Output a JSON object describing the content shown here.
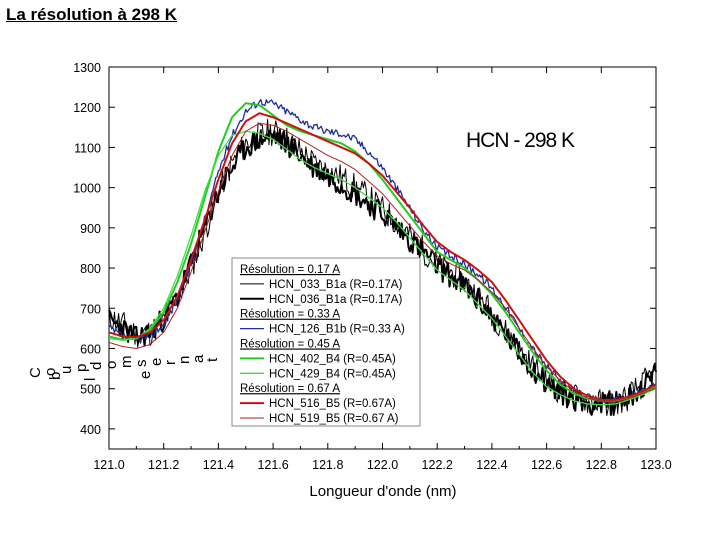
{
  "slide": {
    "title": "La résolution à 298 K"
  },
  "chart_data": {
    "type": "line",
    "title": "",
    "annotation": "HCN - 298 K",
    "xlabel": "Longueur d'onde (nm)",
    "ylabel_fragments": [
      "C",
      "o",
      "u",
      "p",
      "d",
      "o",
      "m",
      "s",
      "e",
      "r",
      "n",
      "a",
      "t",
      "b",
      "l",
      "e"
    ],
    "xlim": [
      121.0,
      123.0
    ],
    "ylim": [
      350,
      1300
    ],
    "xticks": [
      "121.0",
      "121.2",
      "121.4",
      "121.6",
      "121.8",
      "122.0",
      "122.2",
      "122.4",
      "122.6",
      "122.8",
      "123.0"
    ],
    "yticks": [
      "400",
      "500",
      "600",
      "700",
      "800",
      "900",
      "1000",
      "1100",
      "1200",
      "1300"
    ],
    "legend_position": "center-left",
    "legend": [
      {
        "kind": "header",
        "label": "Résolution = 0.17 A"
      },
      {
        "kind": "entry",
        "label": "HCN_033_B1a (R=0.17A)",
        "color": "#000000",
        "width": 1
      },
      {
        "kind": "entry",
        "label": "HCN_036_B1a (R=0.17A)",
        "color": "#000000",
        "width": 2
      },
      {
        "kind": "header",
        "label": "Résolution = 0.33 A"
      },
      {
        "kind": "entry",
        "label": "HCN_126_B1b (R=0.33 A)",
        "color": "#1f2f9a",
        "width": 1.3
      },
      {
        "kind": "header",
        "label": "Résolution = 0.45 A"
      },
      {
        "kind": "entry",
        "label": "HCN_402_B4 (R=0.45A)",
        "color": "#22cc22",
        "width": 2
      },
      {
        "kind": "entry",
        "label": "HCN_429_B4 (R=0.45A)",
        "color": "#44dd44",
        "width": 1.3
      },
      {
        "kind": "header",
        "label": "Résolution = 0.67 A"
      },
      {
        "kind": "entry",
        "label": "HCN_516_B5 (R=0.67A)",
        "color": "#cc1111",
        "width": 2
      },
      {
        "kind": "entry",
        "label": "HCN_519_B5 (R=0.67 A)",
        "color": "#aa2222",
        "width": 1
      }
    ],
    "series": [
      {
        "name": "HCN_033_B1a (R=0.17A)",
        "color": "#000000",
        "width": 1,
        "noise": 35,
        "seed": 11,
        "x": [
          121.0,
          121.05,
          121.1,
          121.15,
          121.2,
          121.25,
          121.3,
          121.35,
          121.4,
          121.45,
          121.5,
          121.55,
          121.6,
          121.65,
          121.7,
          121.75,
          121.8,
          121.85,
          121.9,
          121.95,
          122.0,
          122.05,
          122.1,
          122.15,
          122.2,
          122.25,
          122.3,
          122.35,
          122.4,
          122.45,
          122.5,
          122.55,
          122.6,
          122.65,
          122.7,
          122.75,
          122.8,
          122.85,
          122.9,
          122.95,
          123.0
        ],
        "y": [
          680,
          660,
          635,
          640,
          665,
          720,
          800,
          890,
          990,
          1060,
          1110,
          1130,
          1140,
          1120,
          1090,
          1060,
          1040,
          1025,
          1000,
          975,
          945,
          915,
          880,
          845,
          810,
          790,
          765,
          730,
          690,
          640,
          595,
          555,
          520,
          495,
          480,
          470,
          465,
          465,
          480,
          510,
          545
        ]
      },
      {
        "name": "HCN_036_B1a (R=0.17A)",
        "color": "#000000",
        "width": 2,
        "noise": 30,
        "seed": 23,
        "x": [
          121.0,
          121.05,
          121.1,
          121.15,
          121.2,
          121.25,
          121.3,
          121.35,
          121.4,
          121.45,
          121.5,
          121.55,
          121.6,
          121.65,
          121.7,
          121.75,
          121.8,
          121.85,
          121.9,
          121.95,
          122.0,
          122.05,
          122.1,
          122.15,
          122.2,
          122.25,
          122.3,
          122.35,
          122.4,
          122.45,
          122.5,
          122.55,
          122.6,
          122.65,
          122.7,
          122.75,
          122.8,
          122.85,
          122.9,
          122.95,
          123.0
        ],
        "y": [
          670,
          650,
          625,
          640,
          675,
          730,
          810,
          900,
          990,
          1050,
          1100,
          1120,
          1130,
          1110,
          1080,
          1050,
          1030,
          1010,
          985,
          960,
          935,
          905,
          870,
          840,
          805,
          780,
          755,
          720,
          680,
          635,
          590,
          550,
          515,
          490,
          475,
          465,
          462,
          465,
          480,
          505,
          535
        ]
      },
      {
        "name": "HCN_126_B1b (R=0.33 A)",
        "color": "#1f2f9a",
        "width": 1.3,
        "noise": 10,
        "seed": 37,
        "x": [
          121.0,
          121.05,
          121.1,
          121.15,
          121.2,
          121.25,
          121.3,
          121.35,
          121.4,
          121.45,
          121.5,
          121.55,
          121.6,
          121.65,
          121.7,
          121.75,
          121.8,
          121.85,
          121.9,
          121.95,
          122.0,
          122.05,
          122.1,
          122.15,
          122.2,
          122.25,
          122.3,
          122.35,
          122.4,
          122.45,
          122.5,
          122.55,
          122.6,
          122.65,
          122.7,
          122.75,
          122.8,
          122.85,
          122.9,
          122.95,
          123.0
        ],
        "y": [
          650,
          630,
          620,
          630,
          660,
          720,
          810,
          920,
          1040,
          1130,
          1190,
          1215,
          1210,
          1190,
          1170,
          1150,
          1140,
          1135,
          1120,
          1090,
          1050,
          1000,
          950,
          895,
          850,
          830,
          810,
          785,
          750,
          705,
          650,
          600,
          555,
          520,
          495,
          478,
          470,
          470,
          480,
          495,
          510
        ]
      },
      {
        "name": "HCN_402_B4 (R=0.45A)",
        "color": "#22cc22",
        "width": 2,
        "noise": 0,
        "seed": 41,
        "x": [
          121.0,
          121.05,
          121.1,
          121.15,
          121.2,
          121.25,
          121.3,
          121.35,
          121.4,
          121.45,
          121.5,
          121.55,
          121.6,
          121.65,
          121.7,
          121.75,
          121.8,
          121.85,
          121.9,
          121.95,
          122.0,
          122.05,
          122.1,
          122.15,
          122.2,
          122.25,
          122.3,
          122.35,
          122.4,
          122.45,
          122.5,
          122.55,
          122.6,
          122.65,
          122.7,
          122.75,
          122.8,
          122.85,
          122.9,
          122.95,
          123.0
        ],
        "y": [
          630,
          622,
          625,
          645,
          690,
          765,
          860,
          975,
          1090,
          1175,
          1210,
          1205,
          1180,
          1155,
          1140,
          1130,
          1120,
          1110,
          1090,
          1060,
          1020,
          975,
          930,
          885,
          840,
          820,
          800,
          770,
          735,
          690,
          640,
          590,
          545,
          510,
          488,
          475,
          470,
          470,
          478,
          490,
          505
        ]
      },
      {
        "name": "HCN_429_B4 (R=0.45A)",
        "color": "#44dd44",
        "width": 1.3,
        "noise": 0,
        "seed": 43,
        "x": [
          121.0,
          121.05,
          121.1,
          121.15,
          121.2,
          121.25,
          121.3,
          121.35,
          121.4,
          121.45,
          121.5,
          121.55,
          121.6,
          121.65,
          121.7,
          121.75,
          121.8,
          121.85,
          121.9,
          121.95,
          122.0,
          122.05,
          122.1,
          122.15,
          122.2,
          122.25,
          122.3,
          122.35,
          122.4,
          122.45,
          122.5,
          122.55,
          122.6,
          122.65,
          122.7,
          122.75,
          122.8,
          122.85,
          122.9,
          122.95,
          123.0
        ],
        "y": [
          625,
          620,
          625,
          650,
          700,
          780,
          880,
          990,
          1080,
          1130,
          1140,
          1135,
          1120,
          1095,
          1070,
          1050,
          1035,
          1020,
          1000,
          975,
          950,
          915,
          875,
          835,
          795,
          770,
          745,
          710,
          675,
          630,
          585,
          540,
          505,
          485,
          470,
          462,
          460,
          462,
          472,
          485,
          500
        ]
      },
      {
        "name": "HCN_516_B5 (R=0.67A)",
        "color": "#cc1111",
        "width": 2,
        "noise": 0,
        "seed": 47,
        "x": [
          121.0,
          121.05,
          121.1,
          121.15,
          121.2,
          121.25,
          121.3,
          121.35,
          121.4,
          121.45,
          121.5,
          121.55,
          121.6,
          121.65,
          121.7,
          121.75,
          121.8,
          121.85,
          121.9,
          121.95,
          122.0,
          122.05,
          122.1,
          122.15,
          122.2,
          122.25,
          122.3,
          122.35,
          122.4,
          122.45,
          122.5,
          122.55,
          122.6,
          122.65,
          122.7,
          122.75,
          122.8,
          122.85,
          122.9,
          122.95,
          123.0
        ],
        "y": [
          640,
          630,
          628,
          640,
          670,
          730,
          820,
          920,
          1020,
          1110,
          1165,
          1185,
          1175,
          1160,
          1145,
          1130,
          1115,
          1100,
          1085,
          1060,
          1030,
          990,
          950,
          905,
          865,
          840,
          820,
          795,
          765,
          720,
          670,
          620,
          570,
          530,
          500,
          482,
          472,
          472,
          480,
          493,
          510
        ]
      },
      {
        "name": "HCN_519_B5 (R=0.67 A)",
        "color": "#aa2222",
        "width": 1,
        "noise": 0,
        "seed": 53,
        "x": [
          121.0,
          121.05,
          121.1,
          121.15,
          121.2,
          121.25,
          121.3,
          121.35,
          121.4,
          121.45,
          121.5,
          121.55,
          121.6,
          121.65,
          121.7,
          121.75,
          121.8,
          121.85,
          121.9,
          121.95,
          122.0,
          122.05,
          122.1,
          122.15,
          122.2,
          122.25,
          122.3,
          122.35,
          122.4,
          122.45,
          122.5,
          122.55,
          122.6,
          122.65,
          122.7,
          122.75,
          122.8,
          122.85,
          122.9,
          122.95,
          123.0
        ],
        "y": [
          615,
          605,
          600,
          610,
          640,
          700,
          790,
          890,
          990,
          1080,
          1140,
          1160,
          1155,
          1140,
          1120,
          1100,
          1080,
          1065,
          1045,
          1015,
          985,
          945,
          905,
          865,
          830,
          810,
          795,
          770,
          740,
          700,
          650,
          600,
          555,
          520,
          493,
          477,
          468,
          467,
          475,
          488,
          502
        ]
      }
    ]
  }
}
